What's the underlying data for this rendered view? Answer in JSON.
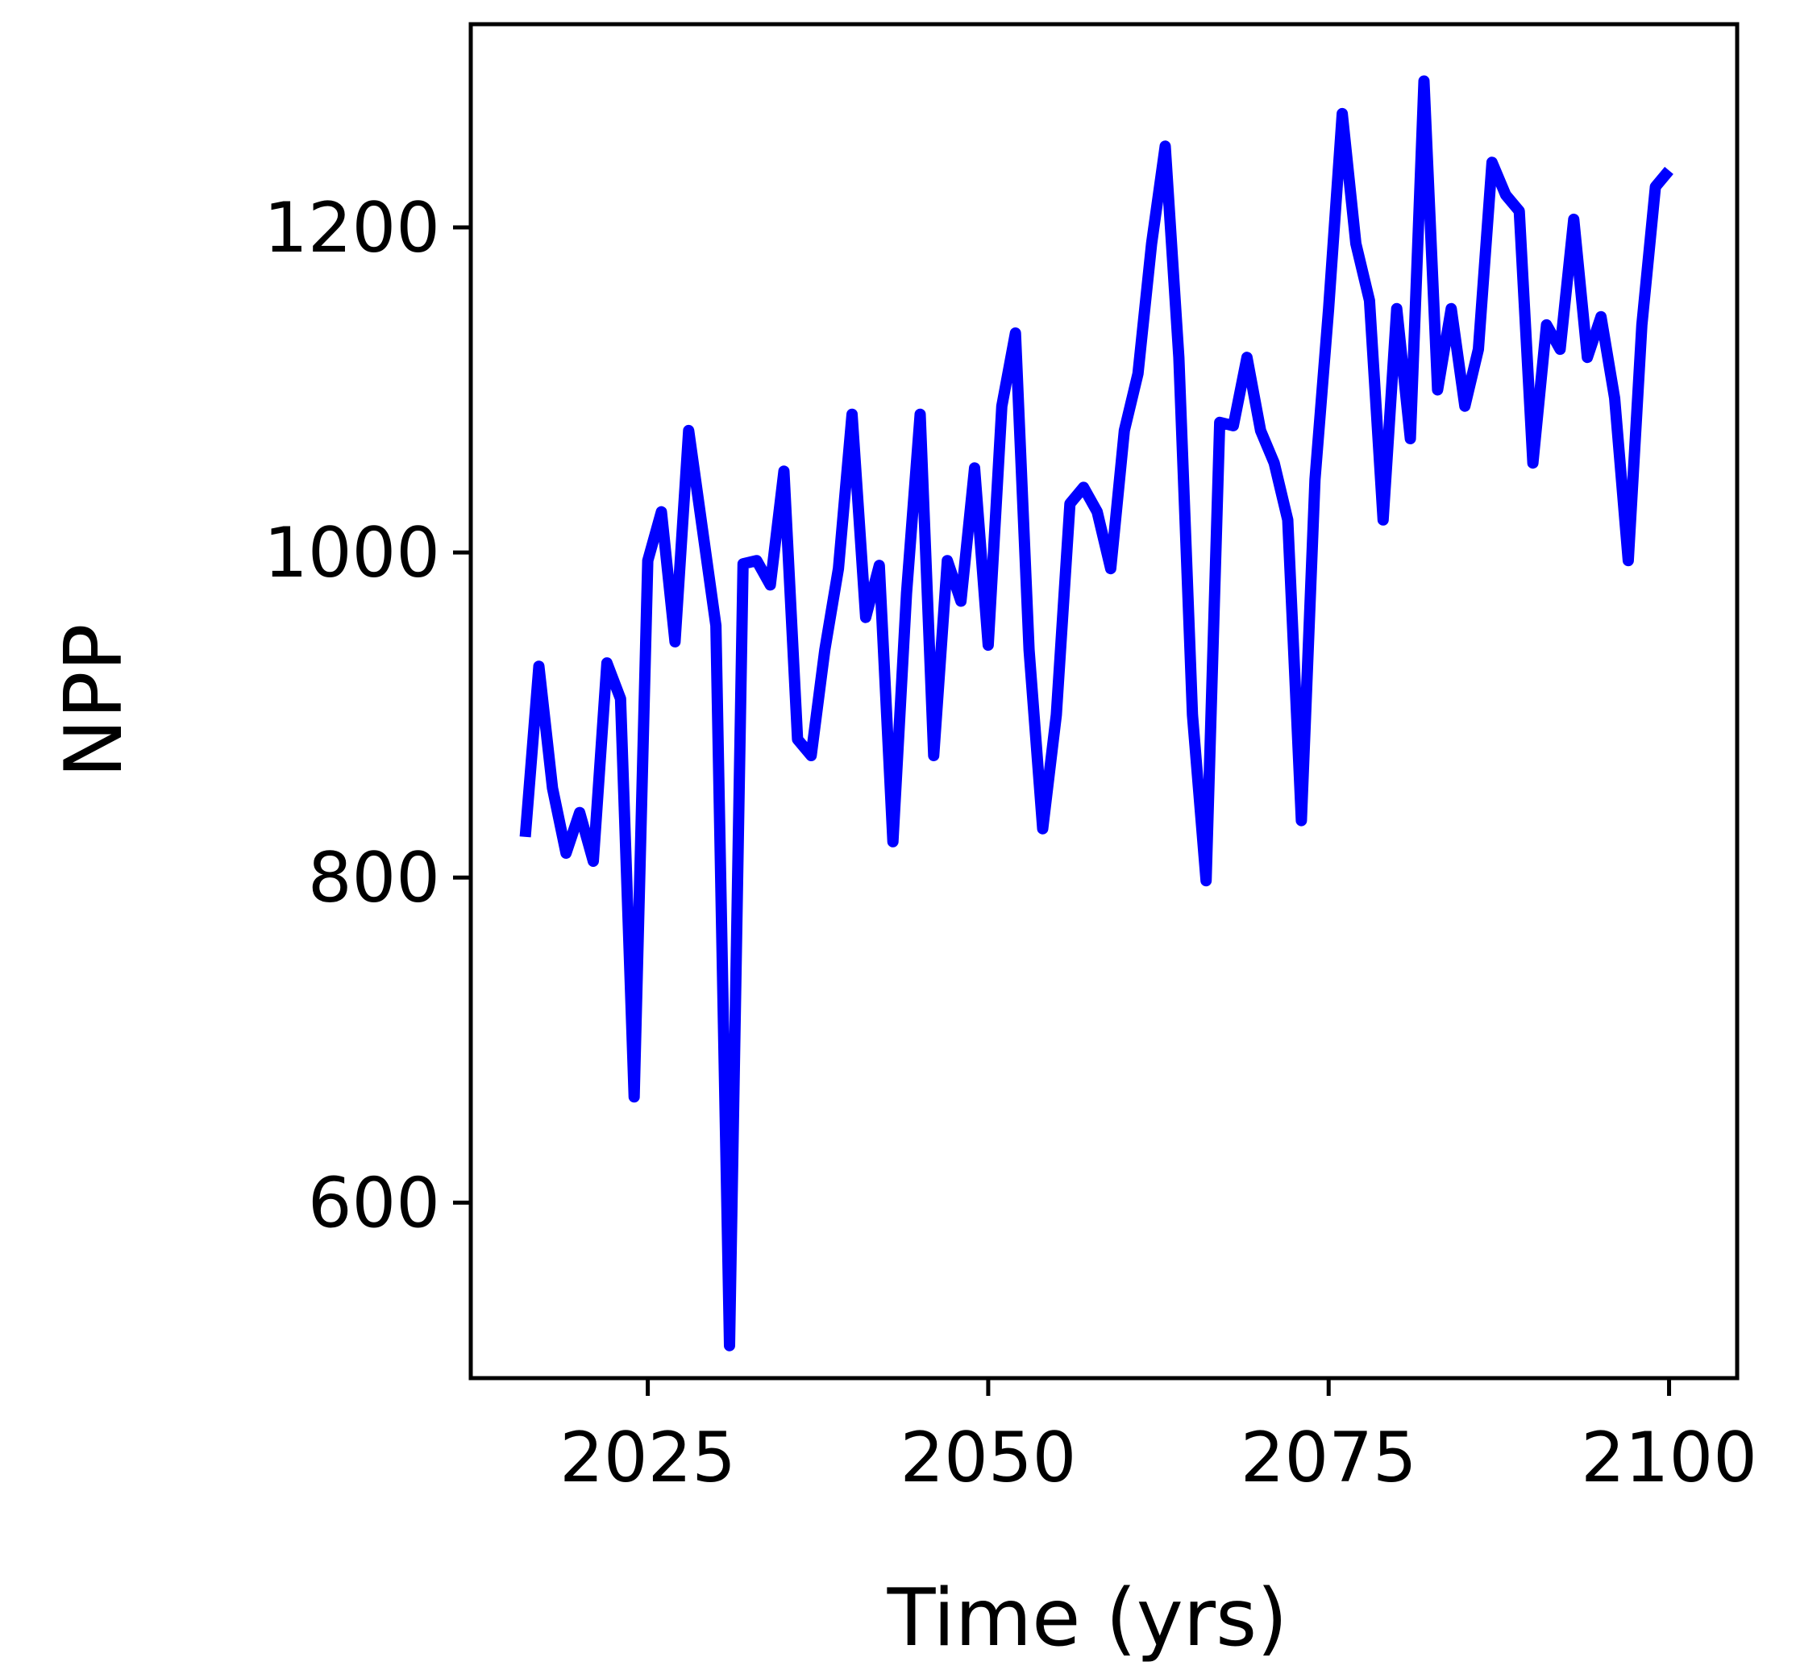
{
  "chart_data": {
    "type": "line",
    "title": "",
    "xlabel": "Time (yrs)",
    "ylabel": "NPP",
    "xlim": [
      2012,
      2105
    ],
    "ylim": [
      492,
      1325
    ],
    "xticks": [
      2025,
      2050,
      2075,
      2100
    ],
    "yticks": [
      600,
      800,
      1000,
      1200
    ],
    "grid": false,
    "legend": false,
    "series": [
      {
        "color": "#0000ff",
        "x": [
          2016,
          2017,
          2018,
          2019,
          2020,
          2021,
          2022,
          2023,
          2024,
          2025,
          2026,
          2027,
          2028,
          2029,
          2030,
          2031,
          2032,
          2033,
          2034,
          2035,
          2036,
          2037,
          2038,
          2039,
          2040,
          2041,
          2042,
          2043,
          2044,
          2045,
          2046,
          2047,
          2048,
          2049,
          2050,
          2051,
          2052,
          2053,
          2054,
          2055,
          2056,
          2057,
          2058,
          2059,
          2060,
          2061,
          2062,
          2063,
          2064,
          2065,
          2066,
          2067,
          2068,
          2069,
          2070,
          2071,
          2072,
          2073,
          2074,
          2075,
          2076,
          2077,
          2078,
          2079,
          2080,
          2081,
          2082,
          2083,
          2084,
          2085,
          2086,
          2087,
          2088,
          2089,
          2090,
          2091,
          2092,
          2093,
          2094,
          2095,
          2096,
          2097,
          2098,
          2099,
          2100
        ],
        "y": [
          825,
          930,
          855,
          815,
          840,
          810,
          932,
          910,
          665,
          995,
          1025,
          945,
          1075,
          1015,
          955,
          512,
          993,
          995,
          980,
          1050,
          885,
          875,
          940,
          990,
          1085,
          960,
          992,
          822,
          975,
          1085,
          875,
          995,
          970,
          1052,
          943,
          1090,
          1135,
          940,
          830,
          900,
          1030,
          1040,
          1025,
          990,
          1075,
          1110,
          1190,
          1250,
          1120,
          900,
          798,
          1080,
          1078,
          1120,
          1075,
          1055,
          1020,
          835,
          1045,
          1150,
          1270,
          1190,
          1155,
          1020,
          1150,
          1070,
          1290,
          1100,
          1150,
          1090,
          1125,
          1240,
          1220,
          1210,
          1055,
          1140,
          1125,
          1205,
          1120,
          1145,
          1095,
          995,
          1140,
          1225,
          1235
        ]
      }
    ]
  }
}
